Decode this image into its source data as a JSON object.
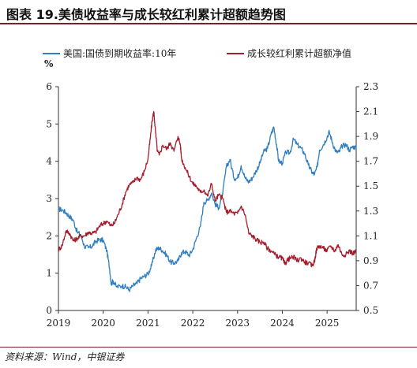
{
  "title": "图表 19.美债收益率与成长较红利累计超额趋势图",
  "source": "资料来源：Wind，中银证券",
  "colors": {
    "series_left": "#2f7ebf",
    "series_right": "#a51d2d",
    "frame": "#7a1f2b"
  },
  "chart_data": {
    "type": "line",
    "title": "图表 19.美债收益率与成长较红利累计超额趋势图",
    "left_axis": {
      "unit": "%",
      "range": [
        0,
        6
      ],
      "ticks": [
        "0",
        "1",
        "2",
        "3",
        "4",
        "5",
        "6"
      ]
    },
    "right_axis": {
      "range": [
        0.5,
        2.3
      ],
      "ticks": [
        "0.5",
        "0.7",
        "0.9",
        "1.1",
        "1.3",
        "1.5",
        "1.7",
        "1.9",
        "2.1",
        "2.3"
      ]
    },
    "x_axis": {
      "range": [
        2019.0,
        2025.65
      ],
      "ticks": [
        "2019",
        "2020",
        "2021",
        "2022",
        "2023",
        "2024",
        "2025"
      ]
    },
    "grid": false,
    "legend_position": "top",
    "series": [
      {
        "name": "美国:国债到期收益率:10年",
        "axis": "left",
        "x": [
          2019.0,
          2019.08,
          2019.17,
          2019.25,
          2019.33,
          2019.42,
          2019.5,
          2019.58,
          2019.67,
          2019.75,
          2019.83,
          2019.92,
          2020.0,
          2020.08,
          2020.14,
          2020.18,
          2020.22,
          2020.3,
          2020.42,
          2020.5,
          2020.58,
          2020.67,
          2020.75,
          2020.83,
          2020.92,
          2021.0,
          2021.08,
          2021.17,
          2021.25,
          2021.33,
          2021.42,
          2021.5,
          2021.58,
          2021.67,
          2021.75,
          2021.83,
          2021.92,
          2022.0,
          2022.08,
          2022.17,
          2022.25,
          2022.33,
          2022.42,
          2022.5,
          2022.58,
          2022.67,
          2022.75,
          2022.83,
          2022.92,
          2023.0,
          2023.08,
          2023.17,
          2023.25,
          2023.33,
          2023.42,
          2023.5,
          2023.58,
          2023.67,
          2023.75,
          2023.81,
          2023.87,
          2023.92,
          2024.0,
          2024.08,
          2024.17,
          2024.25,
          2024.33,
          2024.42,
          2024.5,
          2024.58,
          2024.67,
          2024.72,
          2024.78,
          2024.83,
          2024.92,
          2025.0,
          2025.05,
          2025.12,
          2025.2,
          2025.27,
          2025.33,
          2025.42,
          2025.5,
          2025.58,
          2025.65
        ],
        "values": [
          2.72,
          2.7,
          2.62,
          2.52,
          2.42,
          2.1,
          2.03,
          1.72,
          1.68,
          1.72,
          1.85,
          1.9,
          1.88,
          1.6,
          1.15,
          0.7,
          0.8,
          0.63,
          0.66,
          0.64,
          0.55,
          0.67,
          0.72,
          0.85,
          0.92,
          0.98,
          1.2,
          1.62,
          1.68,
          1.6,
          1.48,
          1.3,
          1.27,
          1.33,
          1.55,
          1.58,
          1.48,
          1.63,
          1.93,
          2.25,
          2.9,
          2.95,
          3.15,
          2.85,
          2.75,
          3.15,
          3.85,
          4.05,
          3.55,
          3.55,
          3.88,
          3.55,
          3.45,
          3.55,
          3.75,
          3.95,
          4.25,
          4.35,
          4.72,
          4.92,
          4.45,
          4.0,
          3.95,
          4.25,
          4.22,
          4.6,
          4.45,
          4.35,
          4.2,
          3.9,
          3.7,
          3.65,
          3.85,
          4.3,
          4.45,
          4.65,
          4.79,
          4.5,
          4.25,
          4.25,
          4.4,
          4.45,
          4.3,
          4.4,
          4.35
        ]
      },
      {
        "name": "成长较红利累计超额净值",
        "axis": "right",
        "x": [
          2019.0,
          2019.08,
          2019.17,
          2019.25,
          2019.33,
          2019.42,
          2019.5,
          2019.58,
          2019.67,
          2019.75,
          2019.83,
          2019.92,
          2020.0,
          2020.08,
          2020.17,
          2020.25,
          2020.33,
          2020.42,
          2020.5,
          2020.58,
          2020.67,
          2020.75,
          2020.83,
          2020.92,
          2021.0,
          2021.05,
          2021.09,
          2021.13,
          2021.17,
          2021.21,
          2021.25,
          2021.33,
          2021.42,
          2021.5,
          2021.58,
          2021.67,
          2021.72,
          2021.75,
          2021.83,
          2021.92,
          2022.0,
          2022.08,
          2022.17,
          2022.25,
          2022.33,
          2022.42,
          2022.5,
          2022.58,
          2022.67,
          2022.75,
          2022.83,
          2022.92,
          2023.0,
          2023.08,
          2023.17,
          2023.25,
          2023.33,
          2023.42,
          2023.5,
          2023.58,
          2023.67,
          2023.75,
          2023.83,
          2023.92,
          2024.0,
          2024.06,
          2024.1,
          2024.17,
          2024.25,
          2024.33,
          2024.42,
          2024.5,
          2024.58,
          2024.67,
          2024.72,
          2024.77,
          2024.83,
          2024.92,
          2025.0,
          2025.08,
          2025.17,
          2025.25,
          2025.33,
          2025.42,
          2025.5,
          2025.58,
          2025.65
        ],
        "values": [
          0.99,
          1.02,
          1.14,
          1.12,
          1.06,
          1.08,
          1.1,
          1.1,
          1.13,
          1.12,
          1.13,
          1.18,
          1.2,
          1.22,
          1.18,
          1.2,
          1.27,
          1.35,
          1.45,
          1.51,
          1.53,
          1.57,
          1.55,
          1.62,
          1.72,
          1.88,
          2.02,
          2.1,
          1.93,
          1.78,
          1.75,
          1.83,
          1.8,
          1.85,
          1.78,
          1.9,
          1.84,
          1.72,
          1.65,
          1.58,
          1.52,
          1.5,
          1.45,
          1.47,
          1.42,
          1.52,
          1.38,
          1.43,
          1.4,
          1.29,
          1.3,
          1.28,
          1.28,
          1.34,
          1.27,
          1.12,
          1.1,
          1.07,
          1.05,
          1.05,
          1.0,
          0.98,
          0.95,
          0.93,
          0.92,
          0.87,
          0.9,
          0.92,
          0.93,
          0.9,
          0.92,
          0.89,
          0.88,
          0.86,
          0.9,
          1.0,
          1.02,
          1.0,
          0.98,
          1.02,
          0.98,
          1.03,
          0.95,
          0.95,
          0.98,
          0.96,
          0.98
        ]
      }
    ]
  }
}
